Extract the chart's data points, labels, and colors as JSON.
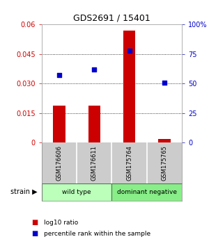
{
  "title": "GDS2691 / 15401",
  "samples": [
    "GSM176606",
    "GSM176611",
    "GSM175764",
    "GSM175765"
  ],
  "log10_ratio": [
    0.019,
    0.019,
    0.057,
    0.002
  ],
  "percentile_rank": [
    57,
    62,
    78,
    51
  ],
  "ylim_left": [
    0,
    0.06
  ],
  "ylim_right": [
    0,
    100
  ],
  "yticks_left": [
    0,
    0.015,
    0.03,
    0.045,
    0.06
  ],
  "yticks_right": [
    0,
    25,
    50,
    75,
    100
  ],
  "ytick_labels_left": [
    "0",
    "0.015",
    "0.030",
    "0.045",
    "0.06"
  ],
  "ytick_labels_right": [
    "0",
    "25",
    "50",
    "75",
    "100%"
  ],
  "groups": [
    {
      "label": "wild type",
      "samples": [
        0,
        1
      ],
      "color": "#bbffbb"
    },
    {
      "label": "dominant negative",
      "samples": [
        2,
        3
      ],
      "color": "#88ee88"
    }
  ],
  "bar_color": "#cc0000",
  "dot_color": "#0000cc",
  "bar_width": 0.35,
  "bg_color": "#ffffff",
  "plot_bg": "#ffffff",
  "label_color_left": "#cc0000",
  "label_color_right": "#0000cc",
  "grid_color": "#000000",
  "sample_box_color": "#cccccc",
  "legend_red_label": "log10 ratio",
  "legend_blue_label": "percentile rank within the sample",
  "strain_label": "strain"
}
